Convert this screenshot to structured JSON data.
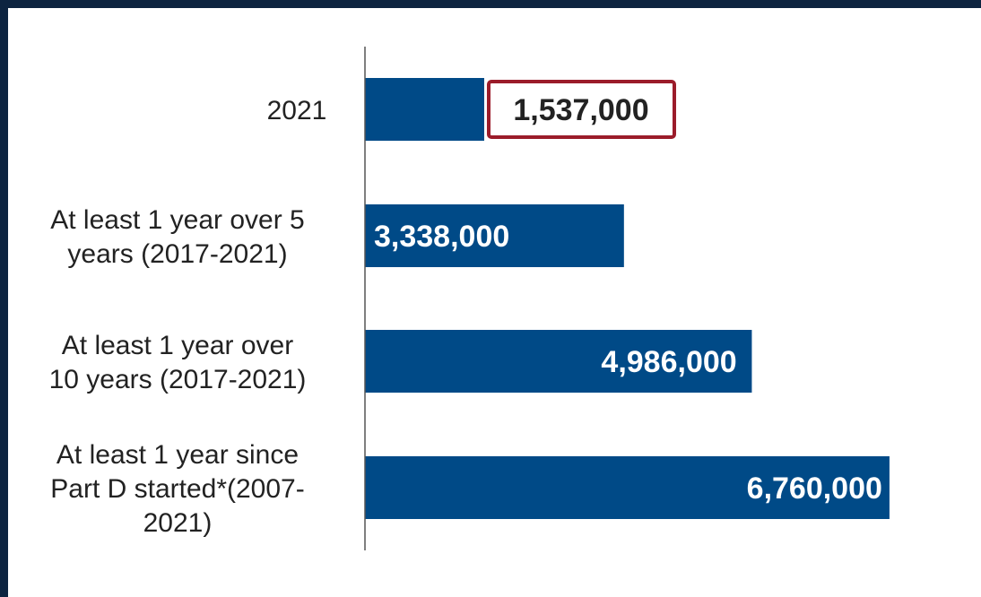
{
  "chart_data": {
    "type": "bar",
    "orientation": "horizontal",
    "categories": [
      "2021",
      "At least 1 year over 5 years (2017-2021)",
      "At least 1 year over 10 years (2017-2021)",
      "At least 1 year since Part D started*(2007-2021)"
    ],
    "category_lines": [
      [
        "2021"
      ],
      [
        "At least 1 year over 5",
        "years (2017-2021)"
      ],
      [
        "At least 1 year over",
        "10 years (2017-2021)"
      ],
      [
        "At least 1 year since",
        "Part D started*(2007-",
        "2021)"
      ]
    ],
    "values": [
      1537000,
      3338000,
      4986000,
      6760000
    ],
    "data_labels": [
      "1,537,000",
      "3,338,000",
      "4,986,000",
      "6,760,000"
    ],
    "highlighted_label_index": 0,
    "xlim": [
      0,
      7200000
    ],
    "grid": false,
    "legend": "none",
    "colors": {
      "bar": "#004a87",
      "label_on_bar": "#ffffff",
      "label_outside": "#222222",
      "highlight_border": "#9b1c2a",
      "axis": "#555555",
      "frame": "#0d2440"
    }
  }
}
